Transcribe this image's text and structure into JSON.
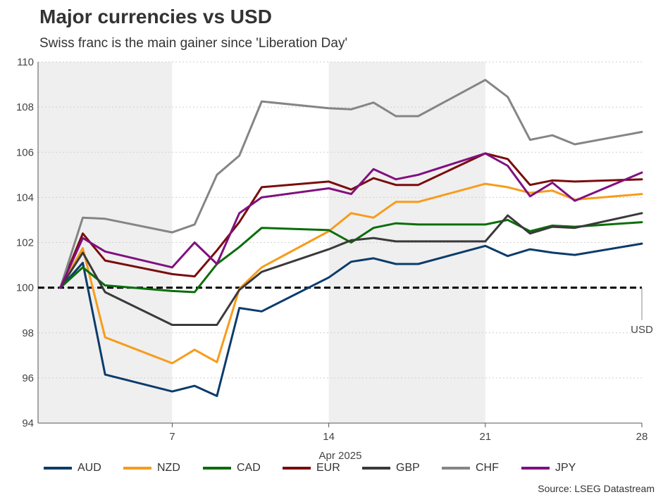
{
  "header": {
    "title": "Major currencies vs USD",
    "subtitle": "Swiss franc is the main gainer since 'Liberation Day'"
  },
  "source": "Source: LSEG Datastream",
  "chart_data": {
    "type": "line",
    "title": "Major currencies vs USD",
    "subtitle": "Swiss franc is the main gainer since 'Liberation Day'",
    "xlabel": "Apr 2025",
    "ylabel": "",
    "x": [
      2,
      3,
      4,
      7,
      8,
      9,
      10,
      11,
      14,
      15,
      16,
      17,
      18,
      21,
      22,
      23,
      24,
      25,
      28
    ],
    "x_range": [
      1,
      28
    ],
    "ylim": [
      94,
      110
    ],
    "yticks": [
      94,
      96,
      98,
      100,
      102,
      104,
      106,
      108,
      110
    ],
    "xticks": [
      7,
      14,
      21,
      28
    ],
    "xtick_labels": [
      "7",
      "14",
      "21",
      "28"
    ],
    "shaded_ranges": [
      [
        1,
        7
      ],
      [
        14,
        21
      ]
    ],
    "reference_line": {
      "value": 100,
      "label": "USD"
    },
    "grid": true,
    "legend_position": "bottom",
    "series": [
      {
        "name": "AUD",
        "color": "#0b3c6b",
        "values": [
          100,
          101.1,
          96.15,
          95.4,
          95.65,
          95.2,
          99.1,
          98.95,
          100.45,
          101.15,
          101.3,
          101.05,
          101.05,
          101.85,
          101.4,
          101.7,
          101.55,
          101.45,
          101.95
        ]
      },
      {
        "name": "NZD",
        "color": "#f79c1b",
        "values": [
          100,
          101.75,
          97.8,
          96.65,
          97.25,
          96.7,
          99.95,
          100.9,
          102.5,
          103.3,
          103.1,
          103.8,
          103.8,
          104.6,
          104.45,
          104.2,
          104.3,
          103.9,
          104.15
        ]
      },
      {
        "name": "CAD",
        "color": "#0a6e0a",
        "values": [
          100,
          100.9,
          100.1,
          99.85,
          99.8,
          101.05,
          101.8,
          102.65,
          102.55,
          102.0,
          102.65,
          102.85,
          102.8,
          102.8,
          103.0,
          102.5,
          102.75,
          102.7,
          102.9
        ]
      },
      {
        "name": "EUR",
        "color": "#7a0c0c",
        "values": [
          100,
          102.4,
          101.2,
          100.6,
          100.5,
          101.65,
          102.9,
          104.45,
          104.7,
          104.35,
          104.85,
          104.55,
          104.55,
          105.95,
          105.7,
          104.55,
          104.75,
          104.7,
          104.8
        ]
      },
      {
        "name": "GBP",
        "color": "#3a3a3a",
        "values": [
          100,
          101.55,
          99.8,
          98.35,
          98.35,
          98.35,
          99.9,
          100.7,
          101.7,
          102.1,
          102.2,
          102.05,
          102.05,
          102.05,
          103.2,
          102.4,
          102.7,
          102.65,
          103.3
        ]
      },
      {
        "name": "CHF",
        "color": "#858585",
        "values": [
          100,
          103.1,
          103.05,
          102.45,
          102.8,
          105.0,
          105.85,
          108.25,
          107.95,
          107.9,
          108.2,
          107.6,
          107.6,
          109.2,
          108.45,
          106.55,
          106.75,
          106.35,
          106.9
        ]
      },
      {
        "name": "JPY",
        "color": "#80107f",
        "values": [
          100,
          102.2,
          101.6,
          100.9,
          102.0,
          101.05,
          103.3,
          104.0,
          104.4,
          104.15,
          105.25,
          104.8,
          105.0,
          105.95,
          105.4,
          104.05,
          104.65,
          103.85,
          105.1
        ]
      }
    ]
  }
}
